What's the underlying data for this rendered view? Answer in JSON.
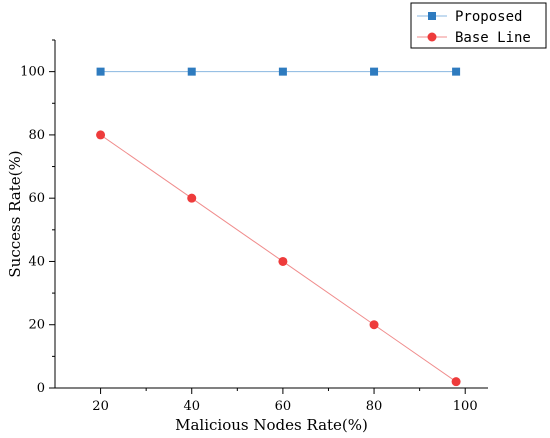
{
  "chart_data": {
    "type": "line",
    "title": "",
    "xlabel": "Malicious Nodes Rate(%)",
    "ylabel": "Success Rate(%)",
    "xlim": [
      10,
      105
    ],
    "ylim": [
      0,
      110
    ],
    "xticks": [
      20,
      40,
      60,
      80,
      100
    ],
    "yticks": [
      0,
      20,
      40,
      60,
      80,
      100
    ],
    "grid": false,
    "legend_position": "top-right",
    "series": [
      {
        "name": "Proposed",
        "marker": "square",
        "color": "#2e7bbf",
        "line_color": "#8ab7e0",
        "x": [
          20,
          40,
          60,
          80,
          98
        ],
        "values": [
          100,
          100,
          100,
          100,
          100
        ]
      },
      {
        "name": "Base Line",
        "marker": "circle",
        "color": "#ee3b3b",
        "line_color": "#f08c8c",
        "x": [
          20,
          40,
          60,
          80,
          98
        ],
        "values": [
          80,
          60,
          40,
          20,
          2
        ]
      }
    ]
  }
}
